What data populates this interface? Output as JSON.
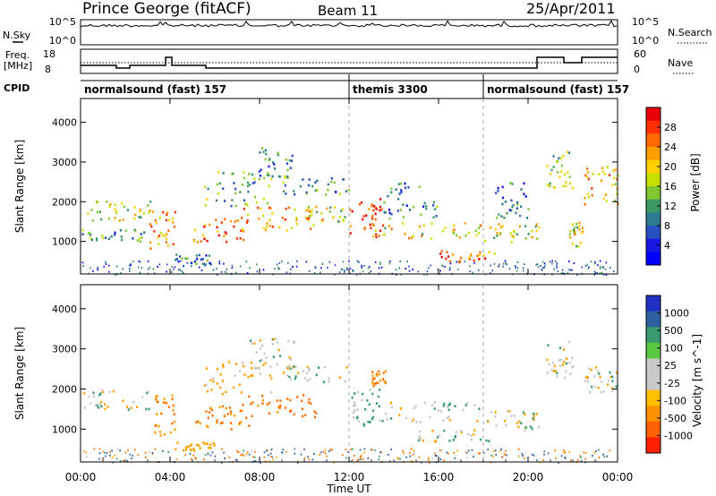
{
  "header": {
    "title": "Prince George (fitACF)",
    "beam": "Beam 11",
    "date": "25/Apr/2011"
  },
  "noise_panel": {
    "left_label": "N.Sky",
    "right_label": "N.Search",
    "left_ticks": [
      "10^5",
      "10^0"
    ],
    "right_ticks": [
      "10^5",
      "10^0"
    ]
  },
  "freq_panel": {
    "left_label_1": "Freq.",
    "left_label_2": "[MHz]",
    "right_label": "Nave",
    "left_ticks": [
      "18",
      "8"
    ],
    "right_ticks": [
      "60",
      "0"
    ]
  },
  "cpid_panel": {
    "label": "CPID",
    "segments": [
      {
        "name": "normalsound (fast) 157",
        "start_h": 0,
        "end_h": 12
      },
      {
        "name": "themis 3300",
        "start_h": 12,
        "end_h": 18
      },
      {
        "name": "normalsound (fast) 157",
        "start_h": 18,
        "end_h": 24
      }
    ]
  },
  "power_colorbar": {
    "label": "Power [dB]",
    "ticks": [
      "28",
      "24",
      "20",
      "16",
      "12",
      "8",
      "4"
    ],
    "colors": [
      "#e8000a",
      "#ff3000",
      "#ff6a00",
      "#ff9d00",
      "#ffd000",
      "#c8e000",
      "#7fc830",
      "#3c9a60",
      "#2c7a90",
      "#2850c0",
      "#1818e0",
      "#0000ff"
    ]
  },
  "velocity_colorbar": {
    "label": "Velocity [m s^-1]",
    "ticks": [
      "1000",
      "500",
      "100",
      "25",
      "-25",
      "-100",
      "-500",
      "-1000"
    ],
    "colors": [
      "#2030c0",
      "#2c60a0",
      "#3a9a70",
      "#5ac840",
      "#c8c8c8",
      "#c8c8c8",
      "#ffc000",
      "#ff9000",
      "#ff6000",
      "#ff2000"
    ]
  },
  "chart_data": [
    {
      "type": "heatmap",
      "title": "Power",
      "ylabel": "Slant Range [km]",
      "ylim": [
        180,
        4600
      ],
      "yticks": [
        1000,
        2000,
        3000,
        4000
      ],
      "xlim": [
        0,
        24
      ],
      "xticks": [
        0,
        4,
        8,
        12,
        16,
        20,
        24
      ],
      "features": [
        {
          "t0": 0.0,
          "t1": 3.2,
          "r0": 1550,
          "r1": 2050,
          "level": 0.55
        },
        {
          "t0": 0.0,
          "t1": 3.0,
          "r0": 1000,
          "r1": 1350,
          "level": 0.35
        },
        {
          "t0": 3.0,
          "t1": 4.2,
          "r0": 700,
          "r1": 1800,
          "level": 0.7
        },
        {
          "t0": 4.2,
          "t1": 6.0,
          "r0": 450,
          "r1": 700,
          "level": 0.3
        },
        {
          "t0": 5.0,
          "t1": 7.5,
          "r0": 1000,
          "r1": 1600,
          "level": 0.85
        },
        {
          "t0": 5.5,
          "t1": 8.5,
          "r0": 1900,
          "r1": 2800,
          "level": 0.4
        },
        {
          "t0": 7.5,
          "t1": 9.5,
          "r0": 2600,
          "r1": 3400,
          "level": 0.3
        },
        {
          "t0": 7.0,
          "t1": 10.5,
          "r0": 1300,
          "r1": 1900,
          "level": 0.75
        },
        {
          "t0": 9.0,
          "t1": 12.0,
          "r0": 2200,
          "r1": 2700,
          "level": 0.35
        },
        {
          "t0": 10.0,
          "t1": 11.8,
          "r0": 1500,
          "r1": 1900,
          "level": 0.55
        },
        {
          "t0": 12.0,
          "t1": 13.5,
          "r0": 1100,
          "r1": 2100,
          "level": 0.9
        },
        {
          "t0": 13.5,
          "t1": 16.0,
          "r0": 1600,
          "r1": 2500,
          "level": 0.3
        },
        {
          "t0": 13.0,
          "t1": 18.0,
          "r0": 1100,
          "r1": 1500,
          "level": 0.6
        },
        {
          "t0": 16.0,
          "t1": 18.5,
          "r0": 500,
          "r1": 800,
          "level": 0.8
        },
        {
          "t0": 18.0,
          "t1": 20.5,
          "r0": 1000,
          "r1": 1500,
          "level": 0.55
        },
        {
          "t0": 18.5,
          "t1": 20.0,
          "r0": 1600,
          "r1": 2500,
          "level": 0.25
        },
        {
          "t0": 20.8,
          "t1": 22.0,
          "r0": 2300,
          "r1": 3300,
          "level": 0.5
        },
        {
          "t0": 21.8,
          "t1": 22.4,
          "r0": 900,
          "r1": 1500,
          "level": 0.6
        },
        {
          "t0": 22.5,
          "t1": 24.0,
          "r0": 1900,
          "r1": 2900,
          "level": 0.7
        }
      ]
    },
    {
      "type": "heatmap",
      "title": "Velocity",
      "ylabel": "Slant Range [km]",
      "ylim": [
        180,
        4600
      ],
      "yticks": [
        1000,
        2000,
        3000,
        4000
      ],
      "xlabel": "Time UT",
      "xlim": [
        0,
        24
      ],
      "xticks": [
        0,
        4,
        8,
        12,
        16,
        20,
        24
      ],
      "xticklabels": [
        "00:00",
        "04:00",
        "08:00",
        "12:00",
        "16:00",
        "20:00",
        "00:00"
      ],
      "features": [
        {
          "t0": 0.0,
          "t1": 3.2,
          "r0": 1500,
          "r1": 2000,
          "vel": 0
        },
        {
          "t0": 3.2,
          "t1": 4.2,
          "r0": 800,
          "r1": 1900,
          "vel": -300
        },
        {
          "t0": 4.2,
          "t1": 6.0,
          "r0": 480,
          "r1": 700,
          "vel": -200
        },
        {
          "t0": 5.0,
          "t1": 7.5,
          "r0": 1000,
          "r1": 1600,
          "vel": -400
        },
        {
          "t0": 5.5,
          "t1": 8.5,
          "r0": 1900,
          "r1": 2700,
          "vel": -150
        },
        {
          "t0": 7.5,
          "t1": 9.5,
          "r0": 2500,
          "r1": 3300,
          "vel": 0
        },
        {
          "t0": 7.0,
          "t1": 10.5,
          "r0": 1300,
          "r1": 1900,
          "vel": -450
        },
        {
          "t0": 9.0,
          "t1": 12.0,
          "r0": 2200,
          "r1": 2600,
          "vel": 0
        },
        {
          "t0": 12.0,
          "t1": 13.5,
          "r0": 1100,
          "r1": 2100,
          "vel": 100
        },
        {
          "t0": 13.0,
          "t1": 13.6,
          "r0": 2100,
          "r1": 2500,
          "vel": -400
        },
        {
          "t0": 13.5,
          "t1": 18.0,
          "r0": 1200,
          "r1": 1700,
          "vel": 0
        },
        {
          "t0": 15.0,
          "t1": 18.5,
          "r0": 700,
          "r1": 1000,
          "vel": 0
        },
        {
          "t0": 18.0,
          "t1": 20.5,
          "r0": 1000,
          "r1": 1500,
          "vel": 0
        },
        {
          "t0": 20.8,
          "t1": 22.0,
          "r0": 2300,
          "r1": 3200,
          "vel": 0
        },
        {
          "t0": 22.5,
          "t1": 24.0,
          "r0": 1900,
          "r1": 2600,
          "vel": 0
        }
      ]
    }
  ]
}
